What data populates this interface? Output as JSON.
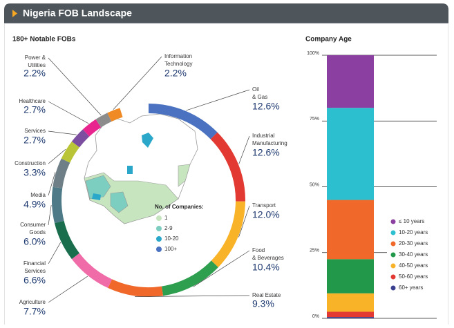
{
  "title": "Nigeria FOB Landscape",
  "chart_data": [
    {
      "type": "donut",
      "title": "180+ Notable FOBs",
      "categories": [
        [
          "Oil",
          "& Gas"
        ],
        [
          "Industrial",
          "Manufacturing"
        ],
        [
          "Transport"
        ],
        [
          "Food",
          "& Beverages"
        ],
        [
          "Real Estate"
        ],
        [
          "Agriculture"
        ],
        [
          "Financial",
          "Services"
        ],
        [
          "Consumer",
          "Goods"
        ],
        [
          "Media"
        ],
        [
          "Construction"
        ],
        [
          "Services"
        ],
        [
          "Healthcare"
        ],
        [
          "Power &",
          "Utilities"
        ],
        [
          "Information",
          "Technology"
        ]
      ],
      "values": [
        12.6,
        12.6,
        12.0,
        10.4,
        9.3,
        7.7,
        6.6,
        6.0,
        4.9,
        3.3,
        2.7,
        2.7,
        2.2,
        2.2
      ],
      "value_labels": [
        "12.6%",
        "12.6%",
        "12.0%",
        "10.4%",
        "9.3%",
        "7.7%",
        "6.6%",
        "6.0%",
        "4.9%",
        "3.3%",
        "2.7%",
        "2.7%",
        "2.2%",
        "2.2%"
      ],
      "colors": [
        "#4a72c0",
        "#e23a33",
        "#f8b328",
        "#2e9e4f",
        "#f0682a",
        "#f06ca8",
        "#1a6e4e",
        "#4d7a86",
        "#6e7f87",
        "#b9c437",
        "#7b4ea0",
        "#e8258e",
        "#8c8c8c",
        "#f08a24"
      ]
    },
    {
      "type": "stacked-bar",
      "title": "Company Age",
      "ylim": [
        0,
        100
      ],
      "yticks": [
        {
          "value": 0,
          "label": "0%"
        },
        {
          "value": 25,
          "label": "25%"
        },
        {
          "value": 50,
          "label": "50%"
        },
        {
          "value": 75,
          "label": "75%"
        },
        {
          "value": 100,
          "label": "100%"
        }
      ],
      "series": [
        {
          "name": "≤ 10 years",
          "color": "#8b3fa0",
          "values": [
            20
          ]
        },
        {
          "name": "10-20 years",
          "color": "#2bbfcf",
          "values": [
            35
          ]
        },
        {
          "name": "20-30 years",
          "color": "#f0682a",
          "values": [
            22.5
          ]
        },
        {
          "name": "30-40 years",
          "color": "#22994a",
          "values": [
            13
          ]
        },
        {
          "name": "40-50 years",
          "color": "#f8b328",
          "values": [
            7
          ]
        },
        {
          "name": "50-60 years",
          "color": "#e23a33",
          "values": [
            2
          ]
        },
        {
          "name": "60+ years",
          "color": "#3a3f8f",
          "values": [
            0.5
          ]
        }
      ]
    }
  ],
  "map_legend": {
    "title": "No. of Companies:",
    "items": [
      {
        "label": "1",
        "color": "#c7e6c0"
      },
      {
        "label": "2-9",
        "color": "#7ccfc0"
      },
      {
        "label": "10-20",
        "color": "#2aa7c9"
      },
      {
        "label": "100+",
        "color": "#4a72c0"
      }
    ]
  }
}
